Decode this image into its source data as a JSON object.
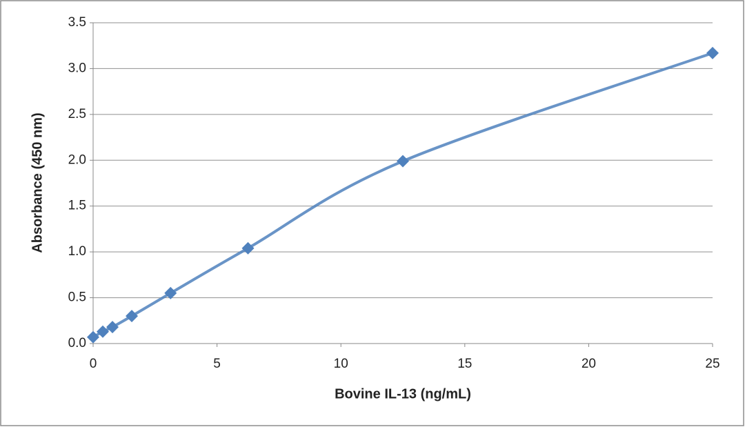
{
  "chart_data": {
    "type": "line",
    "x_label": "Bovine IL-13 (ng/mL)",
    "y_label": "Absorbance  (450 nm)",
    "x": [
      0,
      0.39,
      0.78,
      1.56,
      3.125,
      6.25,
      12.5,
      25
    ],
    "series": [
      {
        "color": "#4f81bd",
        "values": [
          0.07,
          0.13,
          0.18,
          0.3,
          0.55,
          1.04,
          1.99,
          3.17
        ]
      }
    ],
    "xlim": [
      0,
      25
    ],
    "xticks": [
      0,
      5,
      10,
      15,
      20,
      25
    ],
    "ylim": [
      0,
      3.5
    ],
    "yticks": [
      {
        "value": 0,
        "label": "0.0"
      },
      0.5,
      {
        "value": 1,
        "label": "1.0"
      },
      1.5,
      {
        "value": 2,
        "label": "2.0"
      },
      2.5,
      {
        "value": 3,
        "label": "3.0"
      },
      3.5
    ],
    "grid": true
  }
}
